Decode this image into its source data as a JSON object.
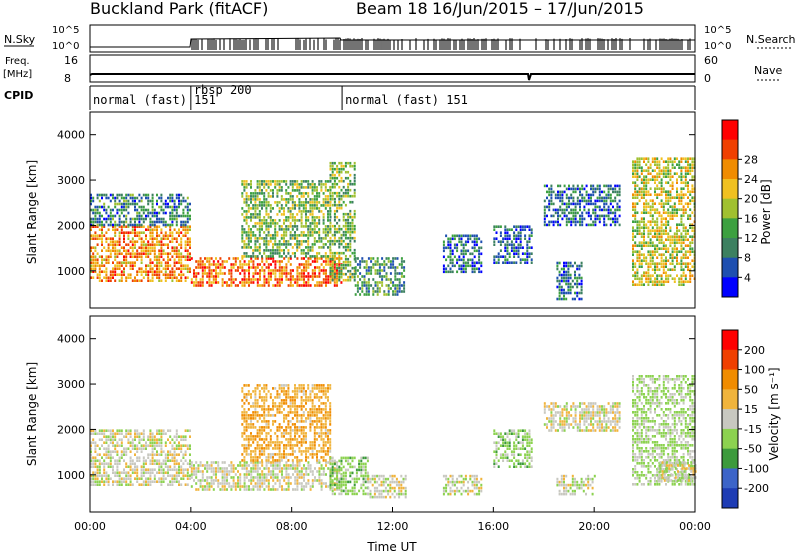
{
  "header": {
    "site": "Buckland Park (fitACF)",
    "beam": "Beam 18",
    "dates": "16/Jun/2015 – 17/Jun/2015"
  },
  "strip_labels": {
    "nsky": "N.Sky",
    "nsearch": "N.Search",
    "freq_line1": "Freq.",
    "freq_line2": "[MHz]",
    "nave": "Nave",
    "cpid": "CPID",
    "nsky_top": "10^5",
    "nsky_bottom": "10^0",
    "nsearch_top": "10^5",
    "nsearch_bottom": "10^0",
    "freq_top": "16",
    "freq_bottom": "8",
    "nave_top": "60",
    "nave_bottom": "0"
  },
  "cpid_segments": [
    {
      "label": "normal (fast) 151",
      "start_h": 0,
      "end_h": 4.0
    },
    {
      "label": "rbsp 200",
      "start_h": 4.0,
      "end_h": 10.0
    },
    {
      "label": "normal (fast) 151",
      "start_h": 10.0,
      "end_h": 24.0
    }
  ],
  "chart_data": [
    {
      "type": "heatmap",
      "name": "power",
      "ylabel": "Slant Range [km]",
      "xlabel": "",
      "colorbar_label": "Power [dB]",
      "colorbar_ticks": [
        "4",
        "8",
        "12",
        "16",
        "20",
        "24",
        "28"
      ],
      "colorbar_colors": [
        "#0000ff",
        "#1e4fb0",
        "#3c8060",
        "#3ca040",
        "#a0c030",
        "#f0c020",
        "#f08c00",
        "#f04000",
        "#ff0000"
      ],
      "yticks": [
        "1000",
        "2000",
        "3000",
        "4000"
      ],
      "ylim": [
        180,
        4500
      ],
      "xlim": [
        0,
        24
      ],
      "regions": [
        {
          "x": [
            0,
            4.0
          ],
          "y": [
            800,
            2000
          ],
          "level": 24
        },
        {
          "x": [
            0,
            4.0
          ],
          "y": [
            2000,
            2700
          ],
          "level": 8
        },
        {
          "x": [
            4.0,
            10.0
          ],
          "y": [
            700,
            1300
          ],
          "level": 26
        },
        {
          "x": [
            6.0,
            9.5
          ],
          "y": [
            1300,
            3000
          ],
          "level": 14
        },
        {
          "x": [
            9.5,
            10.5
          ],
          "y": [
            800,
            3400
          ],
          "level": 14
        },
        {
          "x": [
            10.5,
            12.5
          ],
          "y": [
            500,
            1300
          ],
          "level": 10
        },
        {
          "x": [
            14.0,
            15.5
          ],
          "y": [
            1000,
            1800
          ],
          "level": 6
        },
        {
          "x": [
            16.0,
            17.5
          ],
          "y": [
            1200,
            2000
          ],
          "level": 6
        },
        {
          "x": [
            18.5,
            19.5
          ],
          "y": [
            400,
            1200
          ],
          "level": 6
        },
        {
          "x": [
            18.0,
            21.0
          ],
          "y": [
            2000,
            2900
          ],
          "level": 6
        },
        {
          "x": [
            21.5,
            24.0
          ],
          "y": [
            700,
            3500
          ],
          "level": 18
        }
      ]
    },
    {
      "type": "heatmap",
      "name": "velocity",
      "ylabel": "Slant Range [km]",
      "xlabel": "Time UT",
      "colorbar_label": "Velocity [m s⁻¹]",
      "colorbar_ticks": [
        "200",
        "100",
        "50",
        "15",
        "-15",
        "-50",
        "-100",
        "-200"
      ],
      "colorbar_colors": [
        "#1e3cb4",
        "#3c64c8",
        "#3c9a3c",
        "#8cd250",
        "#c8c8c0",
        "#f0b43c",
        "#f08c00",
        "#f04000",
        "#ff0000"
      ],
      "yticks": [
        "1000",
        "2000",
        "3000",
        "4000"
      ],
      "ylim": [
        180,
        4500
      ],
      "xlim": [
        0,
        24
      ],
      "xticks": [
        "00:00",
        "04:00",
        "08:00",
        "12:00",
        "16:00",
        "20:00",
        "00:00"
      ],
      "regions": [
        {
          "x": [
            0,
            4.0
          ],
          "y": [
            800,
            2000
          ],
          "level": 0
        },
        {
          "x": [
            4.0,
            10.0
          ],
          "y": [
            700,
            1300
          ],
          "level": 0
        },
        {
          "x": [
            6.0,
            9.5
          ],
          "y": [
            1300,
            3000
          ],
          "level": -40
        },
        {
          "x": [
            9.5,
            11.0
          ],
          "y": [
            600,
            1400
          ],
          "level": 30
        },
        {
          "x": [
            11.0,
            12.5
          ],
          "y": [
            500,
            1000
          ],
          "level": 0
        },
        {
          "x": [
            14.0,
            15.5
          ],
          "y": [
            600,
            1000
          ],
          "level": 0
        },
        {
          "x": [
            16.0,
            17.5
          ],
          "y": [
            1200,
            2000
          ],
          "level": 30
        },
        {
          "x": [
            18.0,
            21.0
          ],
          "y": [
            2000,
            2600
          ],
          "level": 0
        },
        {
          "x": [
            18.5,
            20.0
          ],
          "y": [
            600,
            1000
          ],
          "level": 0
        },
        {
          "x": [
            21.5,
            24.0
          ],
          "y": [
            800,
            3200
          ],
          "level": 20
        },
        {
          "x": [
            22.5,
            24.0
          ],
          "y": [
            900,
            1300
          ],
          "level": 0
        }
      ]
    }
  ]
}
